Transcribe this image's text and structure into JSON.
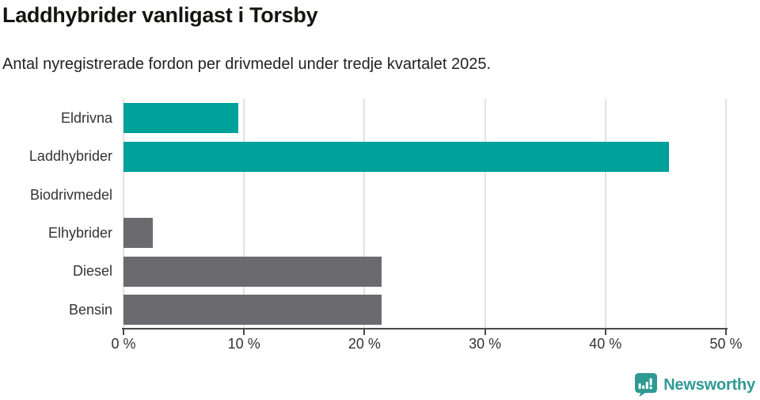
{
  "header": {
    "title": "Laddhybrider vanligast i Torsby",
    "subtitle": "Antal nyregistrerade fordon per drivmedel under tredje kvartalet 2025."
  },
  "chart_data": {
    "type": "bar",
    "orientation": "horizontal",
    "title": "Laddhybrider vanligast i Torsby",
    "subtitle": "Antal nyregistrerade fordon per drivmedel under tredje kvartalet 2025.",
    "categories": [
      "Eldrivna",
      "Laddhybrider",
      "Biodrivmedel",
      "Elhybrider",
      "Diesel",
      "Bensin"
    ],
    "values": [
      9.5,
      45.3,
      0,
      2.4,
      21.4,
      21.4
    ],
    "unit": "%",
    "bar_colors": [
      "#00a19a",
      "#00a19a",
      "#6a6a6f",
      "#6a6a6f",
      "#6a6a6f",
      "#6a6a6f"
    ],
    "xlim": [
      0,
      50
    ],
    "x_ticks": [
      0,
      10,
      20,
      30,
      40,
      50
    ],
    "x_tick_labels": [
      "0 %",
      "10 %",
      "20 %",
      "30 %",
      "40 %",
      "50 %"
    ],
    "grid": true,
    "legend": "none",
    "xlabel": "",
    "ylabel": ""
  },
  "colors": {
    "accent_teal": "#00a19a",
    "neutral_gray": "#6a6a6f",
    "gridline": "#e2e2e2",
    "axis": "#4a4a4a",
    "title_text": "#141410",
    "body_text": "#333333",
    "brand_teal": "#2f9a94"
  },
  "footer": {
    "brand": "Newsworthy",
    "logo_icon": "bar-chart-speech-bubble-icon"
  }
}
